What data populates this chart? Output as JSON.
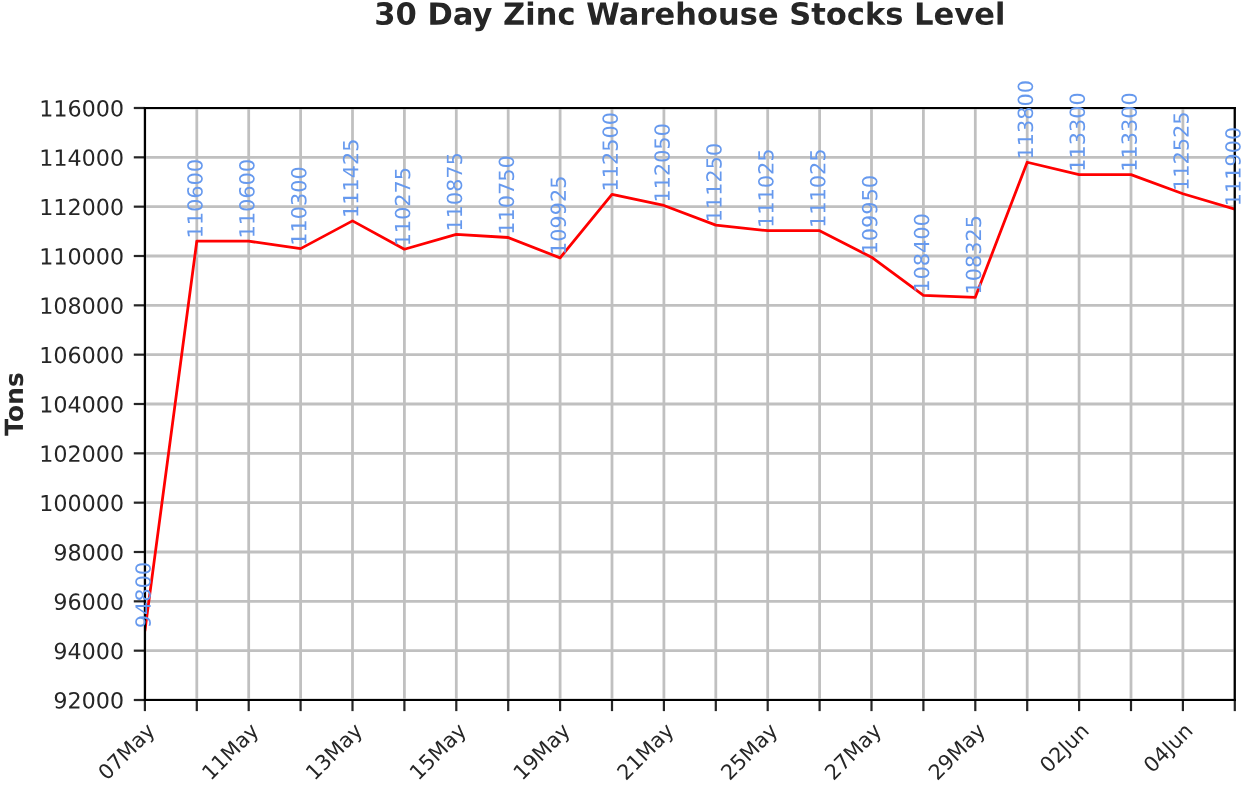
{
  "chart_data": {
    "type": "line",
    "title": "30 Day Zinc Warehouse Stocks Level",
    "ylabel": "Tons",
    "categories": [
      "07May",
      null,
      "11May",
      null,
      "13May",
      null,
      "15May",
      null,
      "19May",
      null,
      "21May",
      null,
      "25May",
      null,
      "27May",
      null,
      "29May",
      null,
      "02Jun",
      null,
      "04Jun",
      null
    ],
    "series": [
      {
        "color": "#ff0000",
        "values": [
          94800,
          110600,
          110600,
          110300,
          111425,
          110275,
          110875,
          110750,
          109925,
          112500,
          112050,
          111250,
          111025,
          111025,
          109950,
          108400,
          108325,
          113800,
          113300,
          113300,
          112525,
          111900
        ]
      }
    ],
    "ylim": [
      92000,
      116000
    ],
    "yticks": [
      92000,
      94000,
      96000,
      98000,
      100000,
      102000,
      104000,
      106000,
      108000,
      110000,
      112000,
      114000,
      116000
    ],
    "grid": true,
    "data_labels": true,
    "marker": "none",
    "line_style": "solid"
  }
}
